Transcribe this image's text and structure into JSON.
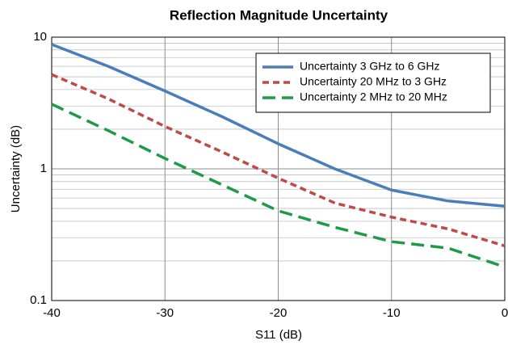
{
  "chart_data": {
    "type": "line",
    "title": "Reflection Magnitude Uncertainty",
    "x_label": "S11 (dB)",
    "y_label": "Uncertainty (dB)",
    "x": [
      -40,
      -35,
      -30,
      -25,
      -20,
      -15,
      -10,
      -5,
      0
    ],
    "series": [
      {
        "name": "Uncertainty 3 GHz to 6 GHz",
        "color": "#4a7ebb",
        "dash": "solid",
        "values": [
          8.8,
          6.0,
          3.9,
          2.5,
          1.55,
          1.0,
          0.69,
          0.57,
          0.52
        ]
      },
      {
        "name": "Uncertainty 20 MHz to  3 GHz",
        "color": "#be4b48",
        "dash": "dashed",
        "values": [
          5.2,
          3.4,
          2.1,
          1.35,
          0.85,
          0.55,
          0.43,
          0.35,
          0.26
        ]
      },
      {
        "name": "Uncertainty 2 MHz to 20 MHz",
        "color": "#1e9a48",
        "dash": "long-dashed",
        "values": [
          3.1,
          1.95,
          1.2,
          0.76,
          0.48,
          0.36,
          0.28,
          0.25,
          0.18
        ]
      }
    ],
    "xlim": [
      -40,
      0
    ],
    "xticks": [
      -40,
      -30,
      -20,
      -10,
      0
    ],
    "ylim": [
      0.1,
      10
    ],
    "yticks": [
      0.1,
      1,
      10
    ],
    "y_scale": "log",
    "grid": true,
    "minor_grid": true,
    "legend": "upper right"
  }
}
